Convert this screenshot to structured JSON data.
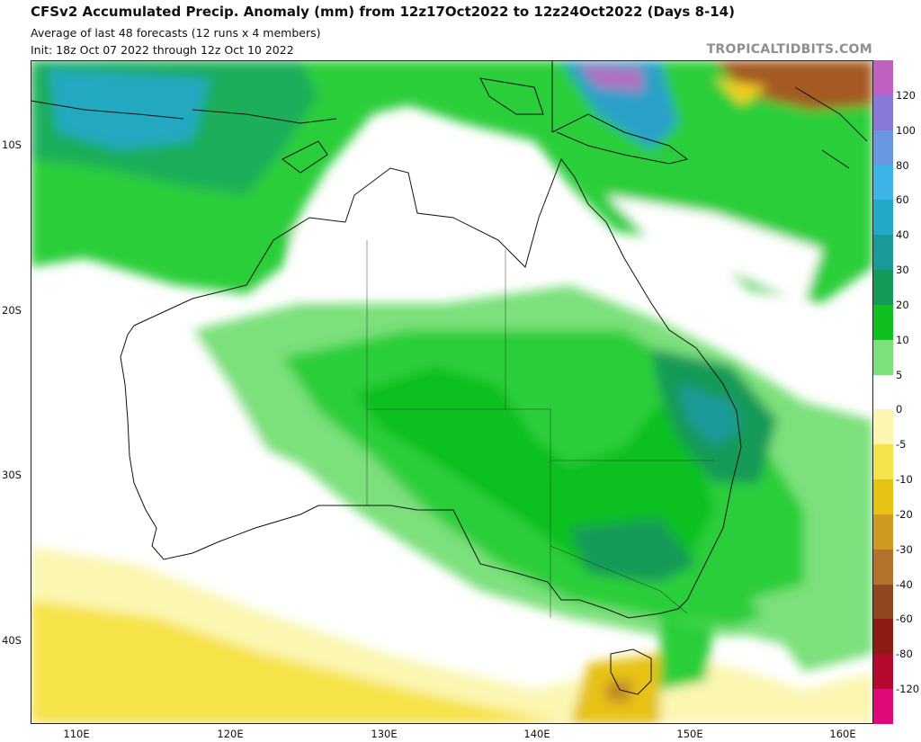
{
  "header": {
    "title": "CFSv2 Accumulated Precip. Anomaly (mm) from 12z17Oct2022 to 12z24Oct2022 (Days 8-14)",
    "subtitle_1": "Average of last 48 forecasts (12 runs x 4 members)",
    "subtitle_2": "Init: 18z Oct 07 2022 through 12z Oct 10 2022",
    "credit": "TROPICALTIDBITS.COM"
  },
  "map": {
    "region": "Australia",
    "variable": "Accumulated Precip. Anomaly (mm)",
    "lat_labels": [
      "10S",
      "20S",
      "30S",
      "40S"
    ],
    "lon_labels": [
      "110E",
      "120E",
      "130E",
      "140E",
      "150E",
      "160E"
    ]
  },
  "colorbar": {
    "labels": [
      "120",
      "100",
      "80",
      "60",
      "40",
      "30",
      "20",
      "10",
      "5",
      "0",
      "-5",
      "-10",
      "-20",
      "-30",
      "-40",
      "-60",
      "-80",
      "-120"
    ],
    "colors": [
      "#c060c0",
      "#8a78d8",
      "#6a98e0",
      "#3cb4e8",
      "#22a8c8",
      "#1a9a9a",
      "#169a58",
      "#10c020",
      "#7ce07c",
      "#ffffff",
      "#fbf6b0",
      "#f6e24a",
      "#e6c212",
      "#d09a1e",
      "#b4722c",
      "#904620",
      "#8c1c14",
      "#b40a30",
      "#de0a7a"
    ]
  }
}
